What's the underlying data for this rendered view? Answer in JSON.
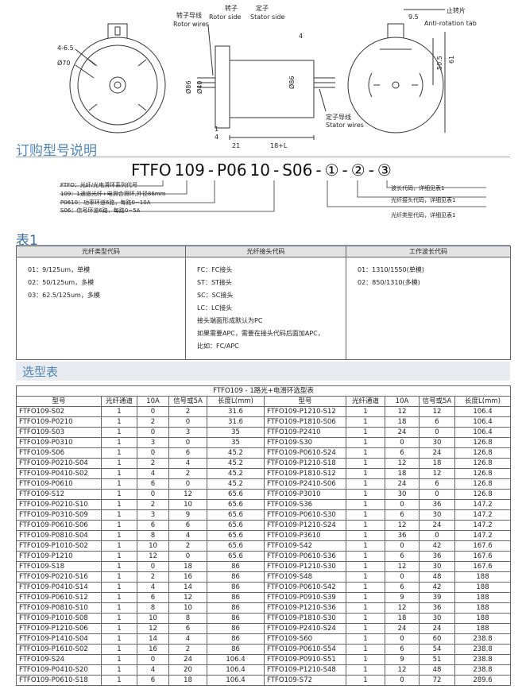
{
  "drawing": {
    "holes": "4-6.5",
    "dia70": "Ø70",
    "rotor_wires_cn": "转子导线",
    "rotor_wires_en": "Rotor wires",
    "rotor_side_cn": "转子",
    "rotor_side_en": "Rotor side",
    "stator_side_cn": "定子",
    "stator_side_en": "Stator side",
    "flange_4": "4",
    "dia86_left": "Ø86",
    "dia40": "Ø40",
    "dia86_right": "Ø86",
    "dim_1": "1",
    "dim_4": "4",
    "dim_21": "21",
    "dim_len": "18+L",
    "stator_wires_cn": "定子导线",
    "stator_wires_en": "Stator wires",
    "dim_9_5": "9.5",
    "tab_cn": "止转片",
    "tab_en": "Anti-rotation tab",
    "dim_50_5": "50.5",
    "dim_61": "61"
  },
  "ordering": {
    "title": "订购型号说明",
    "code": [
      "FTFO",
      "109",
      "-",
      "P06",
      "10",
      "-",
      "S06",
      "-",
      "①",
      "-",
      "②",
      "-",
      "③"
    ],
    "left_notes": [
      "FTFO：光纤/光电滑环系列代号",
      "109：1通道光纤+电滑合滑环,外径86mm",
      "P0610：功率环道6路，每路0~10A",
      "S06：信号环道6路，每路0~5A"
    ],
    "right_notes": [
      "波长代码，详细见表1",
      "光纤接头代码，详细见表1",
      "光纤类型代码，详细见表1"
    ]
  },
  "table1": {
    "title": "表1",
    "headers": [
      "光纤类型代码",
      "光纤接头代码",
      "工作波长代码"
    ],
    "columns": [
      [
        "01：9/125um，单模",
        "02：50/125um，多模",
        "03：62.5/125um，多模"
      ],
      [
        "FC：FC接头",
        "ST：ST接头",
        "SC：SC接头",
        "LC：LC接头",
        "接头端面形成默认为PC",
        "如果需要APC，需要在接头代码后面加APC，",
        "比如：FC/APC"
      ],
      [
        "01：1310/1550(单模)",
        "02：850/1310(多模)"
      ]
    ]
  },
  "selection": {
    "title": "选型表",
    "caption": "FTFO109 - 1路光+电滑环选型表",
    "headers": [
      "型号",
      "光纤通道",
      "10A",
      "信号或5A",
      "长度L(mm)",
      "型号",
      "光纤通道",
      "10A",
      "信号或5A",
      "长度L(mm)"
    ],
    "rows": [
      [
        "FTFO109-S02",
        1,
        0,
        2,
        31.6,
        "FTFO109-P1210-S12",
        1,
        12,
        12,
        106.4
      ],
      [
        "FTFO109-P0210",
        1,
        2,
        0,
        31.6,
        "FTFO109-P1810-S06",
        1,
        18,
        6,
        106.4
      ],
      [
        "FTFO109-S03",
        1,
        0,
        3,
        35,
        "FTFO109-P2410",
        1,
        24,
        0,
        106.4
      ],
      [
        "FTFO109-P0310",
        1,
        3,
        0,
        35,
        "FTFO109-S30",
        1,
        0,
        30,
        126.8
      ],
      [
        "FTFO109-S06",
        1,
        0,
        6,
        45.2,
        "FTFO109-P0610-S24",
        1,
        6,
        24,
        126.8
      ],
      [
        "FTFO109-P0210-S04",
        1,
        2,
        4,
        45.2,
        "FTFO109-P1210-S18",
        1,
        12,
        18,
        126.8
      ],
      [
        "FTFO109-P0410-S02",
        1,
        4,
        2,
        45.2,
        "FTFO109-P1810-S12",
        1,
        18,
        12,
        126.8
      ],
      [
        "FTFO109-P0610",
        1,
        6,
        0,
        45.2,
        "FTFO109-P2410-S06",
        1,
        24,
        6,
        126.8
      ],
      [
        "FTFO109-S12",
        1,
        0,
        12,
        65.6,
        "FTFO109-P3010",
        1,
        30,
        0,
        126.8
      ],
      [
        "FTFO109-P0210-S10",
        1,
        2,
        10,
        65.6,
        "FTFO109-S36",
        1,
        0,
        36,
        147.2
      ],
      [
        "FTFO109-P0310-S09",
        1,
        3,
        9,
        65.6,
        "FTFO109-P0610-S30",
        1,
        6,
        30,
        147.2
      ],
      [
        "FTFO109-P0610-S06",
        1,
        6,
        6,
        65.6,
        "FTFO109-P1210-S24",
        1,
        12,
        24,
        147.2
      ],
      [
        "FTFO109-P0810-S04",
        1,
        8,
        4,
        65.6,
        "FTFO109-P3610",
        1,
        36,
        0,
        147.2
      ],
      [
        "FTFO109-P1010-S02",
        1,
        10,
        2,
        65.6,
        "FTFO109-S42",
        1,
        0,
        42,
        167.6
      ],
      [
        "FTFO109-P1210",
        1,
        12,
        0,
        65.6,
        "FTFO109-P0610-S36",
        1,
        6,
        36,
        167.6
      ],
      [
        "FTFO109-S18",
        1,
        0,
        18,
        86,
        "FTFO109-P1210-S30",
        1,
        12,
        30,
        167.6
      ],
      [
        "FTFO109-P0210-S16",
        1,
        2,
        16,
        86,
        "FTFO109-S48",
        1,
        0,
        48,
        188
      ],
      [
        "FTFO109-P0410-S14",
        1,
        4,
        14,
        86,
        "FTFO109-P0610-S42",
        1,
        6,
        42,
        188
      ],
      [
        "FTFO109-P0610-S12",
        1,
        6,
        12,
        86,
        "FTFO109-P0910-S39",
        1,
        9,
        39,
        188
      ],
      [
        "FTFO109-P0810-S10",
        1,
        8,
        10,
        86,
        "FTFO109-P1210-S36",
        1,
        12,
        36,
        188
      ],
      [
        "FTFO109-P1010-S08",
        1,
        10,
        8,
        86,
        "FTFO109-P1810-S30",
        1,
        18,
        30,
        188
      ],
      [
        "FTFO109-P1210-S06",
        1,
        12,
        6,
        86,
        "FTFO109-P2410-S24",
        1,
        24,
        24,
        188
      ],
      [
        "FTFO109-P1410-S04",
        1,
        14,
        4,
        86,
        "FTFO109-S60",
        1,
        0,
        60,
        238.8
      ],
      [
        "FTFO109-P1610-S02",
        1,
        16,
        2,
        86,
        "FTFO109-P0610-S54",
        1,
        6,
        54,
        238.8
      ],
      [
        "FTFO109-S24",
        1,
        0,
        24,
        106.4,
        "FTFO109-P0910-S51",
        1,
        9,
        51,
        238.8
      ],
      [
        "FTFO109-P0410-S20",
        1,
        4,
        20,
        106.4,
        "FTFO109-P1210-S48",
        1,
        12,
        48,
        238.8
      ],
      [
        "FTFO109-P0610-S18",
        1,
        6,
        18,
        106.4,
        "FTFO109-S72",
        1,
        0,
        72,
        289.6
      ]
    ]
  }
}
